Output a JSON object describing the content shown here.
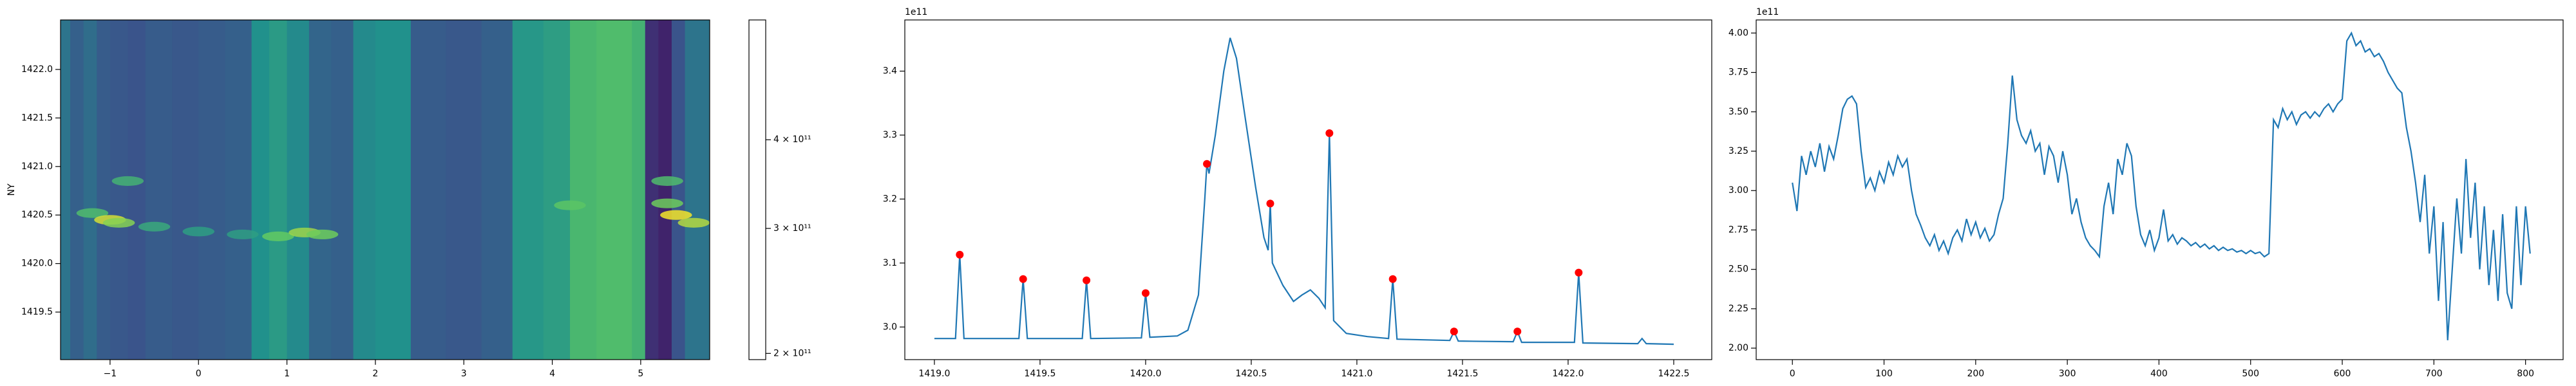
{
  "chart_data": [
    {
      "type": "heatmap",
      "ylabel": "NY",
      "colormap": "viridis",
      "log_color": true,
      "xlim": [
        -1.56,
        5.78
      ],
      "ylim": [
        1419.01,
        1422.51
      ],
      "xticks": [
        {
          "value": -1,
          "label": "−1"
        },
        0,
        1,
        2,
        3,
        4,
        5
      ],
      "yticks": [
        {
          "value": 1419.5,
          "label": "1419.5"
        },
        {
          "value": 1420.0,
          "label": "1420.0"
        },
        {
          "value": 1420.5,
          "label": "1420.5"
        },
        {
          "value": 1421.0,
          "label": "1421.0"
        },
        {
          "value": 1421.5,
          "label": "1421.5"
        },
        {
          "value": 1422.0,
          "label": "1422.0"
        }
      ],
      "x_edges": [
        -1.56,
        -1.45,
        -1.3,
        -1.15,
        -1.0,
        -0.8,
        -0.6,
        -0.3,
        0.0,
        0.3,
        0.6,
        0.8,
        1.0,
        1.25,
        1.5,
        1.75,
        2.0,
        2.4,
        2.8,
        3.2,
        3.55,
        3.9,
        4.2,
        4.5,
        4.9,
        5.05,
        5.2,
        5.35,
        5.5,
        5.78
      ],
      "values": [
        300000000000.0,
        275000000000.0,
        290000000000.0,
        270000000000.0,
        265000000000.0,
        260000000000.0,
        270000000000.0,
        265000000000.0,
        270000000000.0,
        275000000000.0,
        340000000000.0,
        355000000000.0,
        330000000000.0,
        280000000000.0,
        275000000000.0,
        330000000000.0,
        340000000000.0,
        270000000000.0,
        265000000000.0,
        275000000000.0,
        350000000000.0,
        360000000000.0,
        410000000000.0,
        420000000000.0,
        400000000000.0,
        230000000000.0,
        220000000000.0,
        260000000000.0,
        300000000000.0
      ],
      "ridge": {
        "x": [
          -1.2,
          -1.0,
          -0.9,
          -0.8,
          -0.5,
          0.0,
          0.5,
          0.9,
          1.2,
          1.4,
          4.2,
          5.3,
          5.4,
          5.6,
          5.3
        ],
        "y": [
          1420.52,
          1420.45,
          1420.42,
          1420.85,
          1420.38,
          1420.33,
          1420.3,
          1420.28,
          1420.32,
          1420.3,
          1420.6,
          1420.62,
          1420.5,
          1420.42,
          1420.85
        ],
        "values": [
          420000000000.0,
          550000000000.0,
          480000000000.0,
          400000000000.0,
          380000000000.0,
          360000000000.0,
          360000000000.0,
          450000000000.0,
          500000000000.0,
          460000000000.0,
          440000000000.0,
          460000000000.0,
          580000000000.0,
          520000000000.0,
          420000000000.0
        ]
      },
      "clim": [
        196000000000.0,
        590000000000.0
      ],
      "colorbar_ticks": [
        {
          "value": 200000000000.0,
          "label": "2 × 10¹¹"
        },
        {
          "value": 300000000000.0,
          "label": "3 × 10¹¹"
        },
        {
          "value": 400000000000.0,
          "label": "4 × 10¹¹"
        }
      ]
    },
    {
      "type": "line",
      "offset_text": "1e11",
      "xlim": [
        1418.86,
        1422.68
      ],
      "ylim": [
        2.949,
        3.48
      ],
      "xticks": [
        {
          "value": 1419.0,
          "label": "1419.0"
        },
        {
          "value": 1419.5,
          "label": "1419.5"
        },
        {
          "value": 1420.0,
          "label": "1420.0"
        },
        {
          "value": 1420.5,
          "label": "1420.5"
        },
        {
          "value": 1421.0,
          "label": "1421.0"
        },
        {
          "value": 1421.5,
          "label": "1421.5"
        },
        {
          "value": 1422.0,
          "label": "1422.0"
        },
        {
          "value": 1422.5,
          "label": "1422.5"
        }
      ],
      "yticks": [
        {
          "value": 3.0,
          "label": "3.0"
        },
        3.1,
        3.2,
        3.3,
        3.4
      ],
      "series": [
        {
          "color": "#1f77b4",
          "line": true,
          "x": [
            1419.0,
            1419.1,
            1419.12,
            1419.14,
            1419.4,
            1419.42,
            1419.44,
            1419.7,
            1419.72,
            1419.74,
            1419.98,
            1420.0,
            1420.02,
            1420.15,
            1420.2,
            1420.25,
            1420.28,
            1420.29,
            1420.3,
            1420.33,
            1420.37,
            1420.4,
            1420.43,
            1420.47,
            1420.52,
            1420.56,
            1420.58,
            1420.59,
            1420.6,
            1420.65,
            1420.7,
            1420.74,
            1420.78,
            1420.82,
            1420.85,
            1420.87,
            1420.89,
            1420.95,
            1421.05,
            1421.15,
            1421.17,
            1421.19,
            1421.44,
            1421.46,
            1421.48,
            1421.74,
            1421.76,
            1421.78,
            1422.03,
            1422.05,
            1422.07,
            1422.33,
            1422.35,
            1422.37,
            1422.5
          ],
          "values": [
            2.982,
            2.982,
            3.113,
            2.982,
            2.982,
            3.075,
            2.982,
            2.982,
            3.073,
            2.982,
            2.983,
            3.053,
            2.984,
            2.986,
            2.995,
            3.05,
            3.2,
            3.255,
            3.24,
            3.3,
            3.4,
            3.452,
            3.42,
            3.33,
            3.22,
            3.14,
            3.12,
            3.193,
            3.1,
            3.065,
            3.04,
            3.05,
            3.058,
            3.045,
            3.03,
            3.303,
            3.01,
            2.99,
            2.985,
            2.982,
            3.075,
            2.981,
            2.979,
            2.993,
            2.978,
            2.977,
            2.993,
            2.976,
            2.976,
            3.085,
            2.975,
            2.974,
            2.982,
            2.974,
            2.973
          ]
        },
        {
          "color": "red",
          "line": false,
          "marker": "o",
          "x": [
            1419.12,
            1419.42,
            1419.72,
            1420.0,
            1420.29,
            1420.59,
            1420.87,
            1421.17,
            1421.46,
            1421.76,
            1422.05
          ],
          "values": [
            3.113,
            3.075,
            3.073,
            3.053,
            3.255,
            3.193,
            3.303,
            3.075,
            2.993,
            2.993,
            3.085
          ]
        }
      ]
    },
    {
      "type": "line",
      "offset_text": "1e11",
      "xlim": [
        -39.5,
        841
      ],
      "ylim": [
        1.927,
        4.083
      ],
      "xticks": [
        0,
        100,
        200,
        300,
        400,
        500,
        600,
        700,
        800
      ],
      "yticks": [
        {
          "value": 2.0,
          "label": "2.00"
        },
        {
          "value": 2.25,
          "label": "2.25"
        },
        {
          "value": 2.5,
          "label": "2.50"
        },
        {
          "value": 2.75,
          "label": "2.75"
        },
        {
          "value": 3.0,
          "label": "3.00"
        },
        {
          "value": 3.25,
          "label": "3.25"
        },
        {
          "value": 3.5,
          "label": "3.50"
        },
        {
          "value": 3.75,
          "label": "3.75"
        },
        {
          "value": 4.0,
          "label": "4.00"
        }
      ],
      "series": [
        {
          "color": "#1f77b4",
          "line": true,
          "x": [
            0,
            5,
            10,
            15,
            20,
            25,
            30,
            35,
            40,
            45,
            50,
            55,
            60,
            65,
            70,
            75,
            80,
            85,
            90,
            95,
            100,
            105,
            110,
            115,
            120,
            125,
            130,
            135,
            140,
            145,
            150,
            155,
            160,
            165,
            170,
            175,
            180,
            185,
            190,
            195,
            200,
            205,
            210,
            215,
            220,
            225,
            230,
            235,
            240,
            245,
            250,
            255,
            260,
            265,
            270,
            275,
            280,
            285,
            290,
            295,
            300,
            305,
            310,
            315,
            320,
            325,
            330,
            335,
            340,
            345,
            350,
            355,
            360,
            365,
            370,
            375,
            380,
            385,
            390,
            395,
            400,
            405,
            410,
            415,
            420,
            425,
            430,
            435,
            440,
            445,
            450,
            455,
            460,
            465,
            470,
            475,
            480,
            485,
            490,
            495,
            500,
            505,
            510,
            515,
            520,
            525,
            530,
            535,
            540,
            545,
            550,
            555,
            560,
            565,
            570,
            575,
            580,
            585,
            590,
            595,
            600,
            605,
            610,
            615,
            620,
            625,
            630,
            635,
            640,
            645,
            650,
            655,
            660,
            665,
            670,
            675,
            680,
            685,
            690,
            695,
            700,
            705,
            710,
            715,
            720,
            725,
            730,
            735,
            740,
            745,
            750,
            755,
            760,
            765,
            770,
            775,
            780,
            785,
            790,
            795,
            800,
            805
          ],
          "values": [
            3.05,
            2.87,
            3.22,
            3.1,
            3.25,
            3.15,
            3.3,
            3.12,
            3.28,
            3.2,
            3.35,
            3.52,
            3.58,
            3.6,
            3.55,
            3.25,
            3.02,
            3.08,
            3.0,
            3.12,
            3.05,
            3.18,
            3.1,
            3.22,
            3.15,
            3.2,
            3.0,
            2.85,
            2.78,
            2.7,
            2.65,
            2.72,
            2.62,
            2.68,
            2.6,
            2.7,
            2.75,
            2.68,
            2.82,
            2.72,
            2.8,
            2.7,
            2.76,
            2.68,
            2.72,
            2.85,
            2.95,
            3.3,
            3.73,
            3.45,
            3.35,
            3.3,
            3.38,
            3.25,
            3.3,
            3.1,
            3.28,
            3.22,
            3.05,
            3.25,
            3.1,
            2.85,
            2.95,
            2.8,
            2.7,
            2.65,
            2.62,
            2.58,
            2.9,
            3.05,
            2.85,
            3.2,
            3.1,
            3.3,
            3.22,
            2.9,
            2.72,
            2.65,
            2.75,
            2.62,
            2.7,
            2.88,
            2.68,
            2.72,
            2.66,
            2.7,
            2.68,
            2.65,
            2.67,
            2.64,
            2.66,
            2.63,
            2.65,
            2.62,
            2.64,
            2.62,
            2.63,
            2.61,
            2.62,
            2.6,
            2.62,
            2.6,
            2.61,
            2.58,
            2.6,
            3.45,
            3.4,
            3.52,
            3.45,
            3.5,
            3.42,
            3.48,
            3.5,
            3.46,
            3.5,
            3.47,
            3.52,
            3.55,
            3.5,
            3.55,
            3.58,
            3.95,
            4.0,
            3.92,
            3.95,
            3.88,
            3.9,
            3.85,
            3.87,
            3.82,
            3.75,
            3.7,
            3.65,
            3.62,
            3.4,
            3.25,
            3.05,
            2.8,
            3.1,
            2.6,
            2.9,
            2.3,
            2.8,
            2.05,
            2.5,
            2.95,
            2.6,
            3.2,
            2.7,
            3.05,
            2.5,
            2.9,
            2.4,
            2.75,
            2.3,
            2.85,
            2.35,
            2.25,
            2.9,
            2.4,
            2.9,
            2.6
          ]
        }
      ]
    }
  ]
}
